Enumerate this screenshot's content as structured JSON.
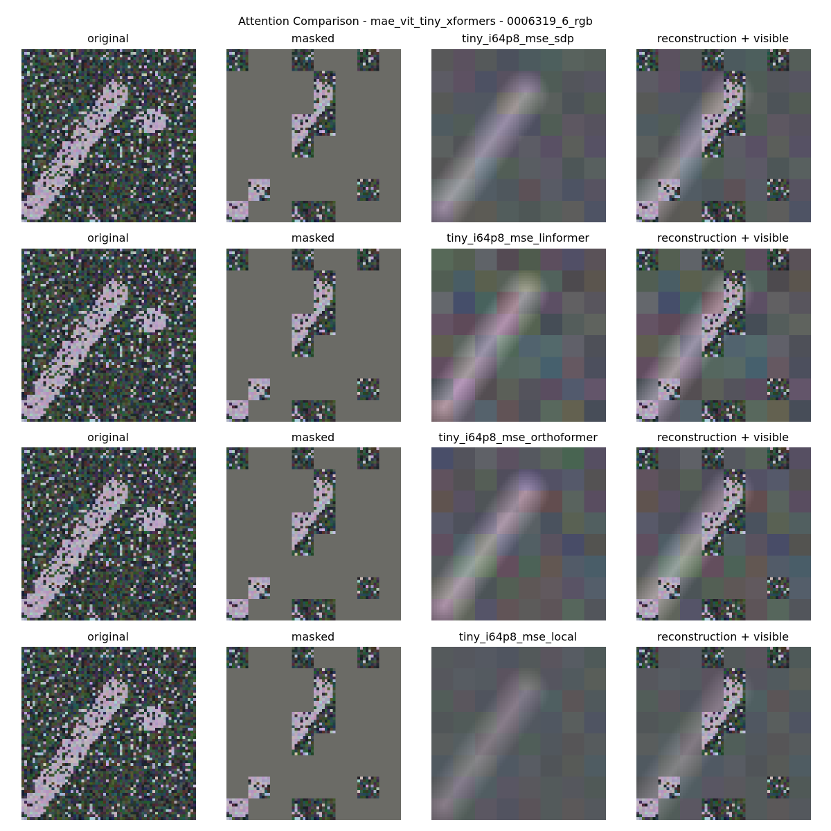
{
  "figure": {
    "suptitle": "Attention Comparison - mae_vit_tiny_xformers - 0006319_6_rgb"
  },
  "grid": {
    "rows": [
      {
        "model": "tiny_i64p8_mse_sdp",
        "panels": [
          {
            "title": "original",
            "kind": "original"
          },
          {
            "title": "masked",
            "kind": "masked"
          },
          {
            "title": "tiny_i64p8_mse_sdp",
            "kind": "reconstruction"
          },
          {
            "title": "reconstruction + visible",
            "kind": "composite"
          }
        ]
      },
      {
        "model": "tiny_i64p8_mse_linformer",
        "panels": [
          {
            "title": "original",
            "kind": "original"
          },
          {
            "title": "masked",
            "kind": "masked"
          },
          {
            "title": "tiny_i64p8_mse_linformer",
            "kind": "reconstruction"
          },
          {
            "title": "reconstruction + visible",
            "kind": "composite"
          }
        ]
      },
      {
        "model": "tiny_i64p8_mse_orthoformer",
        "panels": [
          {
            "title": "original",
            "kind": "original"
          },
          {
            "title": "masked",
            "kind": "masked"
          },
          {
            "title": "tiny_i64p8_mse_orthoformer",
            "kind": "reconstruction"
          },
          {
            "title": "reconstruction + visible",
            "kind": "composite"
          }
        ]
      },
      {
        "model": "tiny_i64p8_mse_local",
        "panels": [
          {
            "title": "original",
            "kind": "original"
          },
          {
            "title": "masked",
            "kind": "masked"
          },
          {
            "title": "tiny_i64p8_mse_local",
            "kind": "reconstruction"
          },
          {
            "title": "reconstruction + visible",
            "kind": "composite"
          }
        ]
      }
    ]
  },
  "colors": {
    "mask_fill": "#6b6b66",
    "recon_base": "#55595d",
    "vegetation": "#3a4540",
    "bright_feature": "#c8bccc"
  }
}
